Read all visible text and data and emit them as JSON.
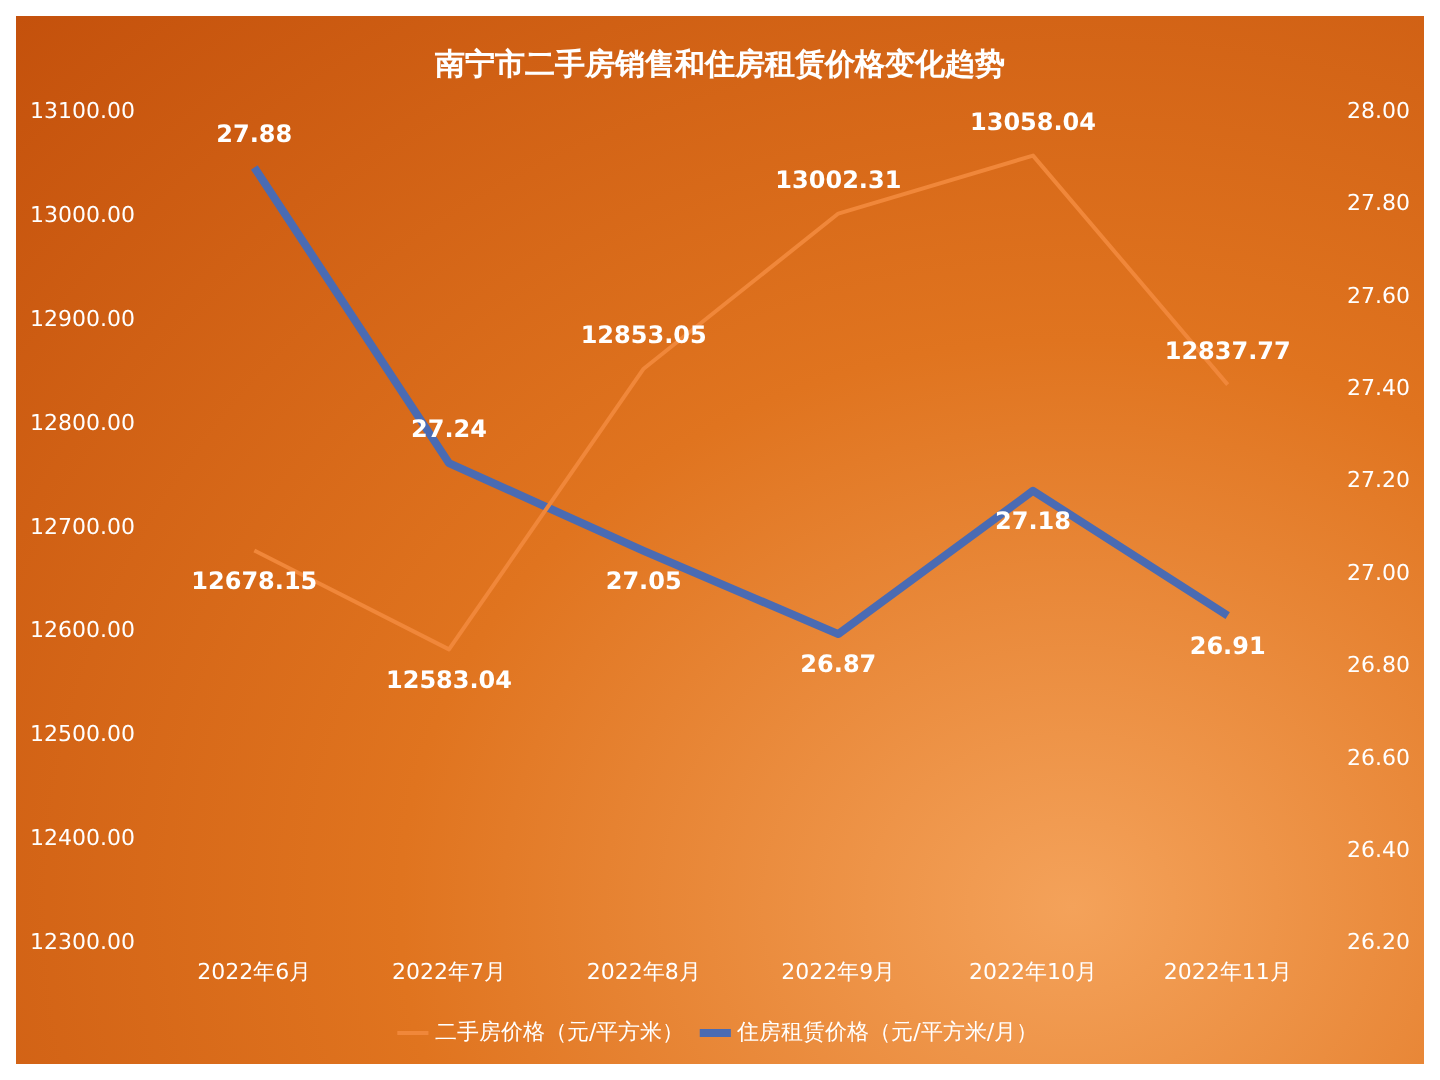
{
  "chart_data": {
    "type": "line",
    "title": "南宁市二手房销售和住房租赁价格变化趋势",
    "categories": [
      "2022年6月",
      "2022年7月",
      "2022年8月",
      "2022年9月",
      "2022年10月",
      "2022年11月"
    ],
    "series": [
      {
        "name": "二手房价格（元/平方米）",
        "color": "#f0873a",
        "values": [
          12678.15,
          12583.04,
          12853.05,
          13002.31,
          13058.04,
          12837.77
        ]
      },
      {
        "name": "住房租赁价格（元/平方米/月）",
        "color": "#4a6bb3",
        "axis": "y2",
        "values": [
          27.88,
          27.24,
          27.05,
          26.87,
          27.18,
          26.91
        ]
      }
    ],
    "ylim": [
      12300,
      13100
    ],
    "yticks": [
      {
        "value": 12300,
        "label": "12300.00"
      },
      {
        "value": 12400,
        "label": "12400.00"
      },
      {
        "value": 12500,
        "label": "12500.00"
      },
      {
        "value": 12600,
        "label": "12600.00"
      },
      {
        "value": 12700,
        "label": "12700.00"
      },
      {
        "value": 12800,
        "label": "12800.00"
      },
      {
        "value": 12900,
        "label": "12900.00"
      },
      {
        "value": 13000,
        "label": "13000.00"
      },
      {
        "value": 13100,
        "label": "13100.00"
      }
    ],
    "y2lim": [
      26.2,
      28
    ],
    "y2ticks": [
      {
        "value": 26.2,
        "label": "26.20"
      },
      {
        "value": 26.4,
        "label": "26.40"
      },
      {
        "value": 26.6,
        "label": "26.60"
      },
      {
        "value": 26.8,
        "label": "26.80"
      },
      {
        "value": 27,
        "label": "27.00"
      },
      {
        "value": 27.2,
        "label": "27.20"
      },
      {
        "value": 27.4,
        "label": "27.40"
      },
      {
        "value": 27.6,
        "label": "27.60"
      },
      {
        "value": 27.8,
        "label": "27.80"
      },
      {
        "value": 28,
        "label": "28.00"
      }
    ],
    "data_labels": true,
    "legend": "bottom",
    "grid": false,
    "marker": "none",
    "line_style": "solid"
  }
}
